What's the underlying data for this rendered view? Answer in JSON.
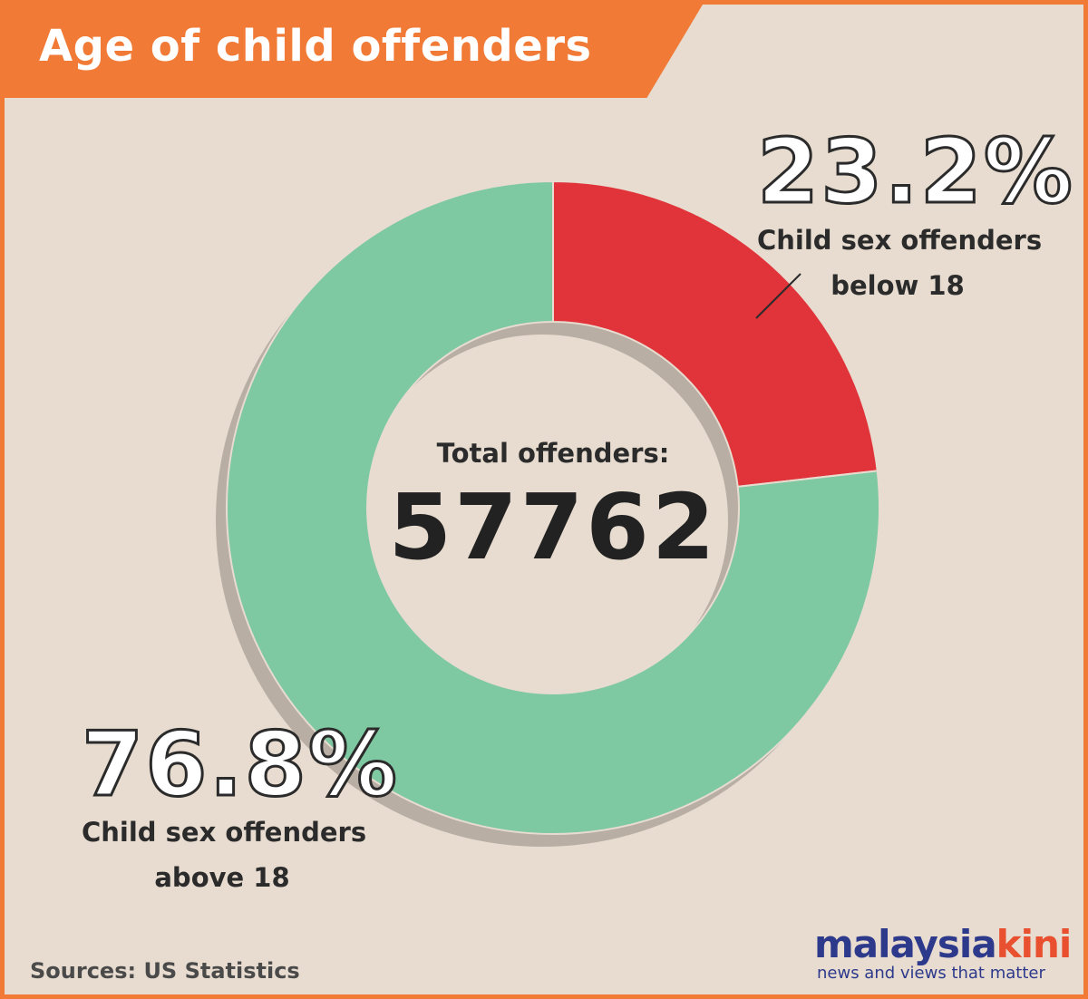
{
  "title": "Age of child offenders",
  "colors": {
    "banner": "#f07a36",
    "background": "#e7dccf",
    "below_18": "#e0343a",
    "above_18": "#7ec8a2",
    "shadow": "#b8aea3"
  },
  "chart_data": {
    "type": "pie",
    "title": "Age of child offenders",
    "donut": true,
    "center_label": "Total offenders:",
    "total": "57762",
    "slices": [
      {
        "label": "Child sex offenders below 18",
        "value": 23.2,
        "color": "#e0343a"
      },
      {
        "label": "Child sex offenders above 18",
        "value": 76.8,
        "color": "#7ec8a2"
      }
    ]
  },
  "labels": {
    "below": {
      "percent": "23.2%",
      "line1": "Child sex offenders",
      "line2": "below 18"
    },
    "above": {
      "percent": "76.8%",
      "line1": "Child sex offenders",
      "line2": "above 18"
    }
  },
  "source": "Sources: US Statistics",
  "logo": {
    "part1": "malaysia",
    "part2": "kini",
    "tagline": "news and views that matter"
  }
}
